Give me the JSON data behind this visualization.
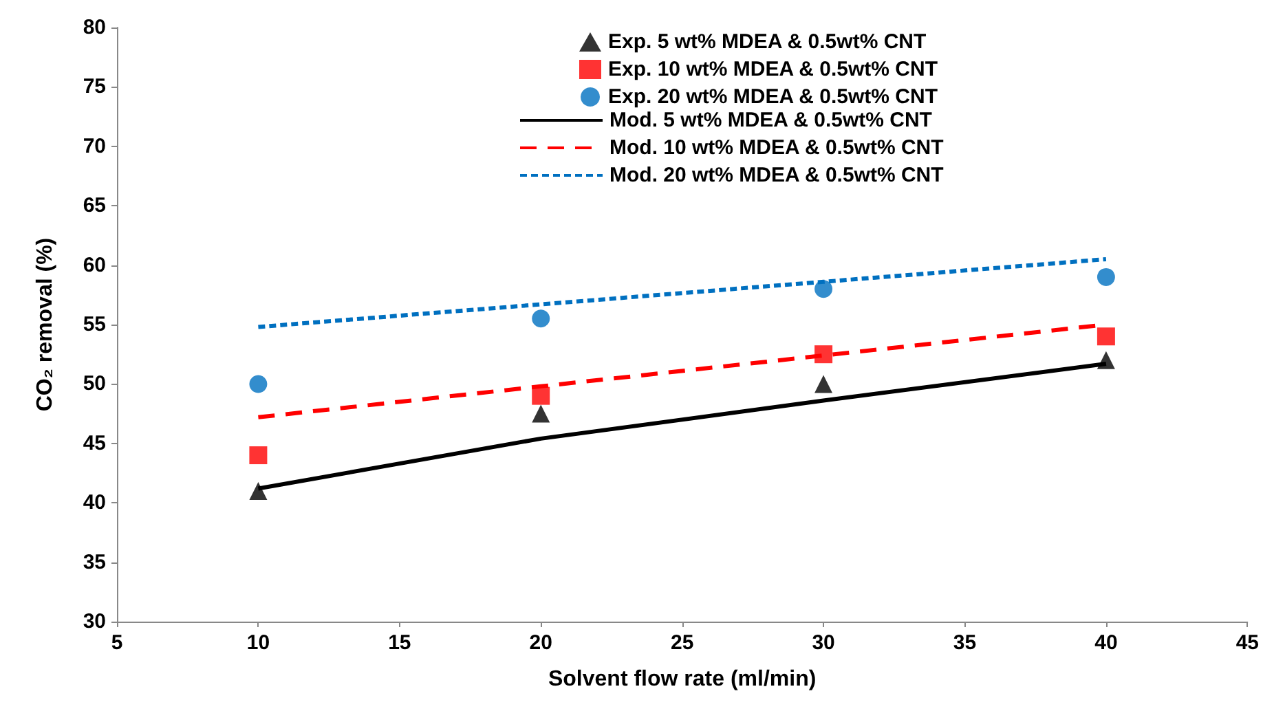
{
  "chart_data": {
    "type": "line",
    "xlabel": "Solvent flow rate (ml/min)",
    "ylabel": "CO₂ removal (%)",
    "x": [
      10,
      20,
      30,
      40
    ],
    "xlim": [
      5,
      45
    ],
    "xticks": [
      5,
      10,
      15,
      20,
      25,
      30,
      35,
      40,
      45
    ],
    "ylim": [
      30,
      80
    ],
    "yticks": [
      30,
      35,
      40,
      45,
      50,
      55,
      60,
      65,
      70,
      75,
      80
    ],
    "grid": false,
    "legend": "top right",
    "series": [
      {
        "name": "Exp. 5 wt% MDEA & 0.5wt% CNT",
        "type": "scatter",
        "marker": "triangle",
        "color": "#000000",
        "values": [
          41,
          47.5,
          50,
          52
        ]
      },
      {
        "name": "Exp. 10 wt% MDEA & 0.5wt% CNT",
        "type": "scatter",
        "marker": "square",
        "color": "#ff0000",
        "values": [
          44,
          49,
          52.5,
          54
        ]
      },
      {
        "name": "Exp. 20 wt% MDEA & 0.5wt% CNT",
        "type": "scatter",
        "marker": "circle",
        "color": "#0070c0",
        "values": [
          50,
          55.5,
          58,
          59
        ]
      },
      {
        "name": "Mod. 5 wt% MDEA & 0.5wt% CNT",
        "line_style": "solid",
        "marker": "none",
        "color": "#000000",
        "values": [
          41.2,
          45.4,
          48.6,
          51.7
        ]
      },
      {
        "name": "Mod. 10 wt% MDEA & 0.5wt% CNT",
        "line_style": "dashed",
        "marker": "none",
        "color": "#ff0000",
        "values": [
          47.2,
          49.8,
          52.4,
          55
        ]
      },
      {
        "name": "Mod. 20 wt% MDEA & 0.5wt% CNT",
        "line_style": "dotted",
        "marker": "none",
        "color": "#0070c0",
        "values": [
          54.8,
          56.7,
          58.6,
          60.5
        ]
      }
    ]
  }
}
